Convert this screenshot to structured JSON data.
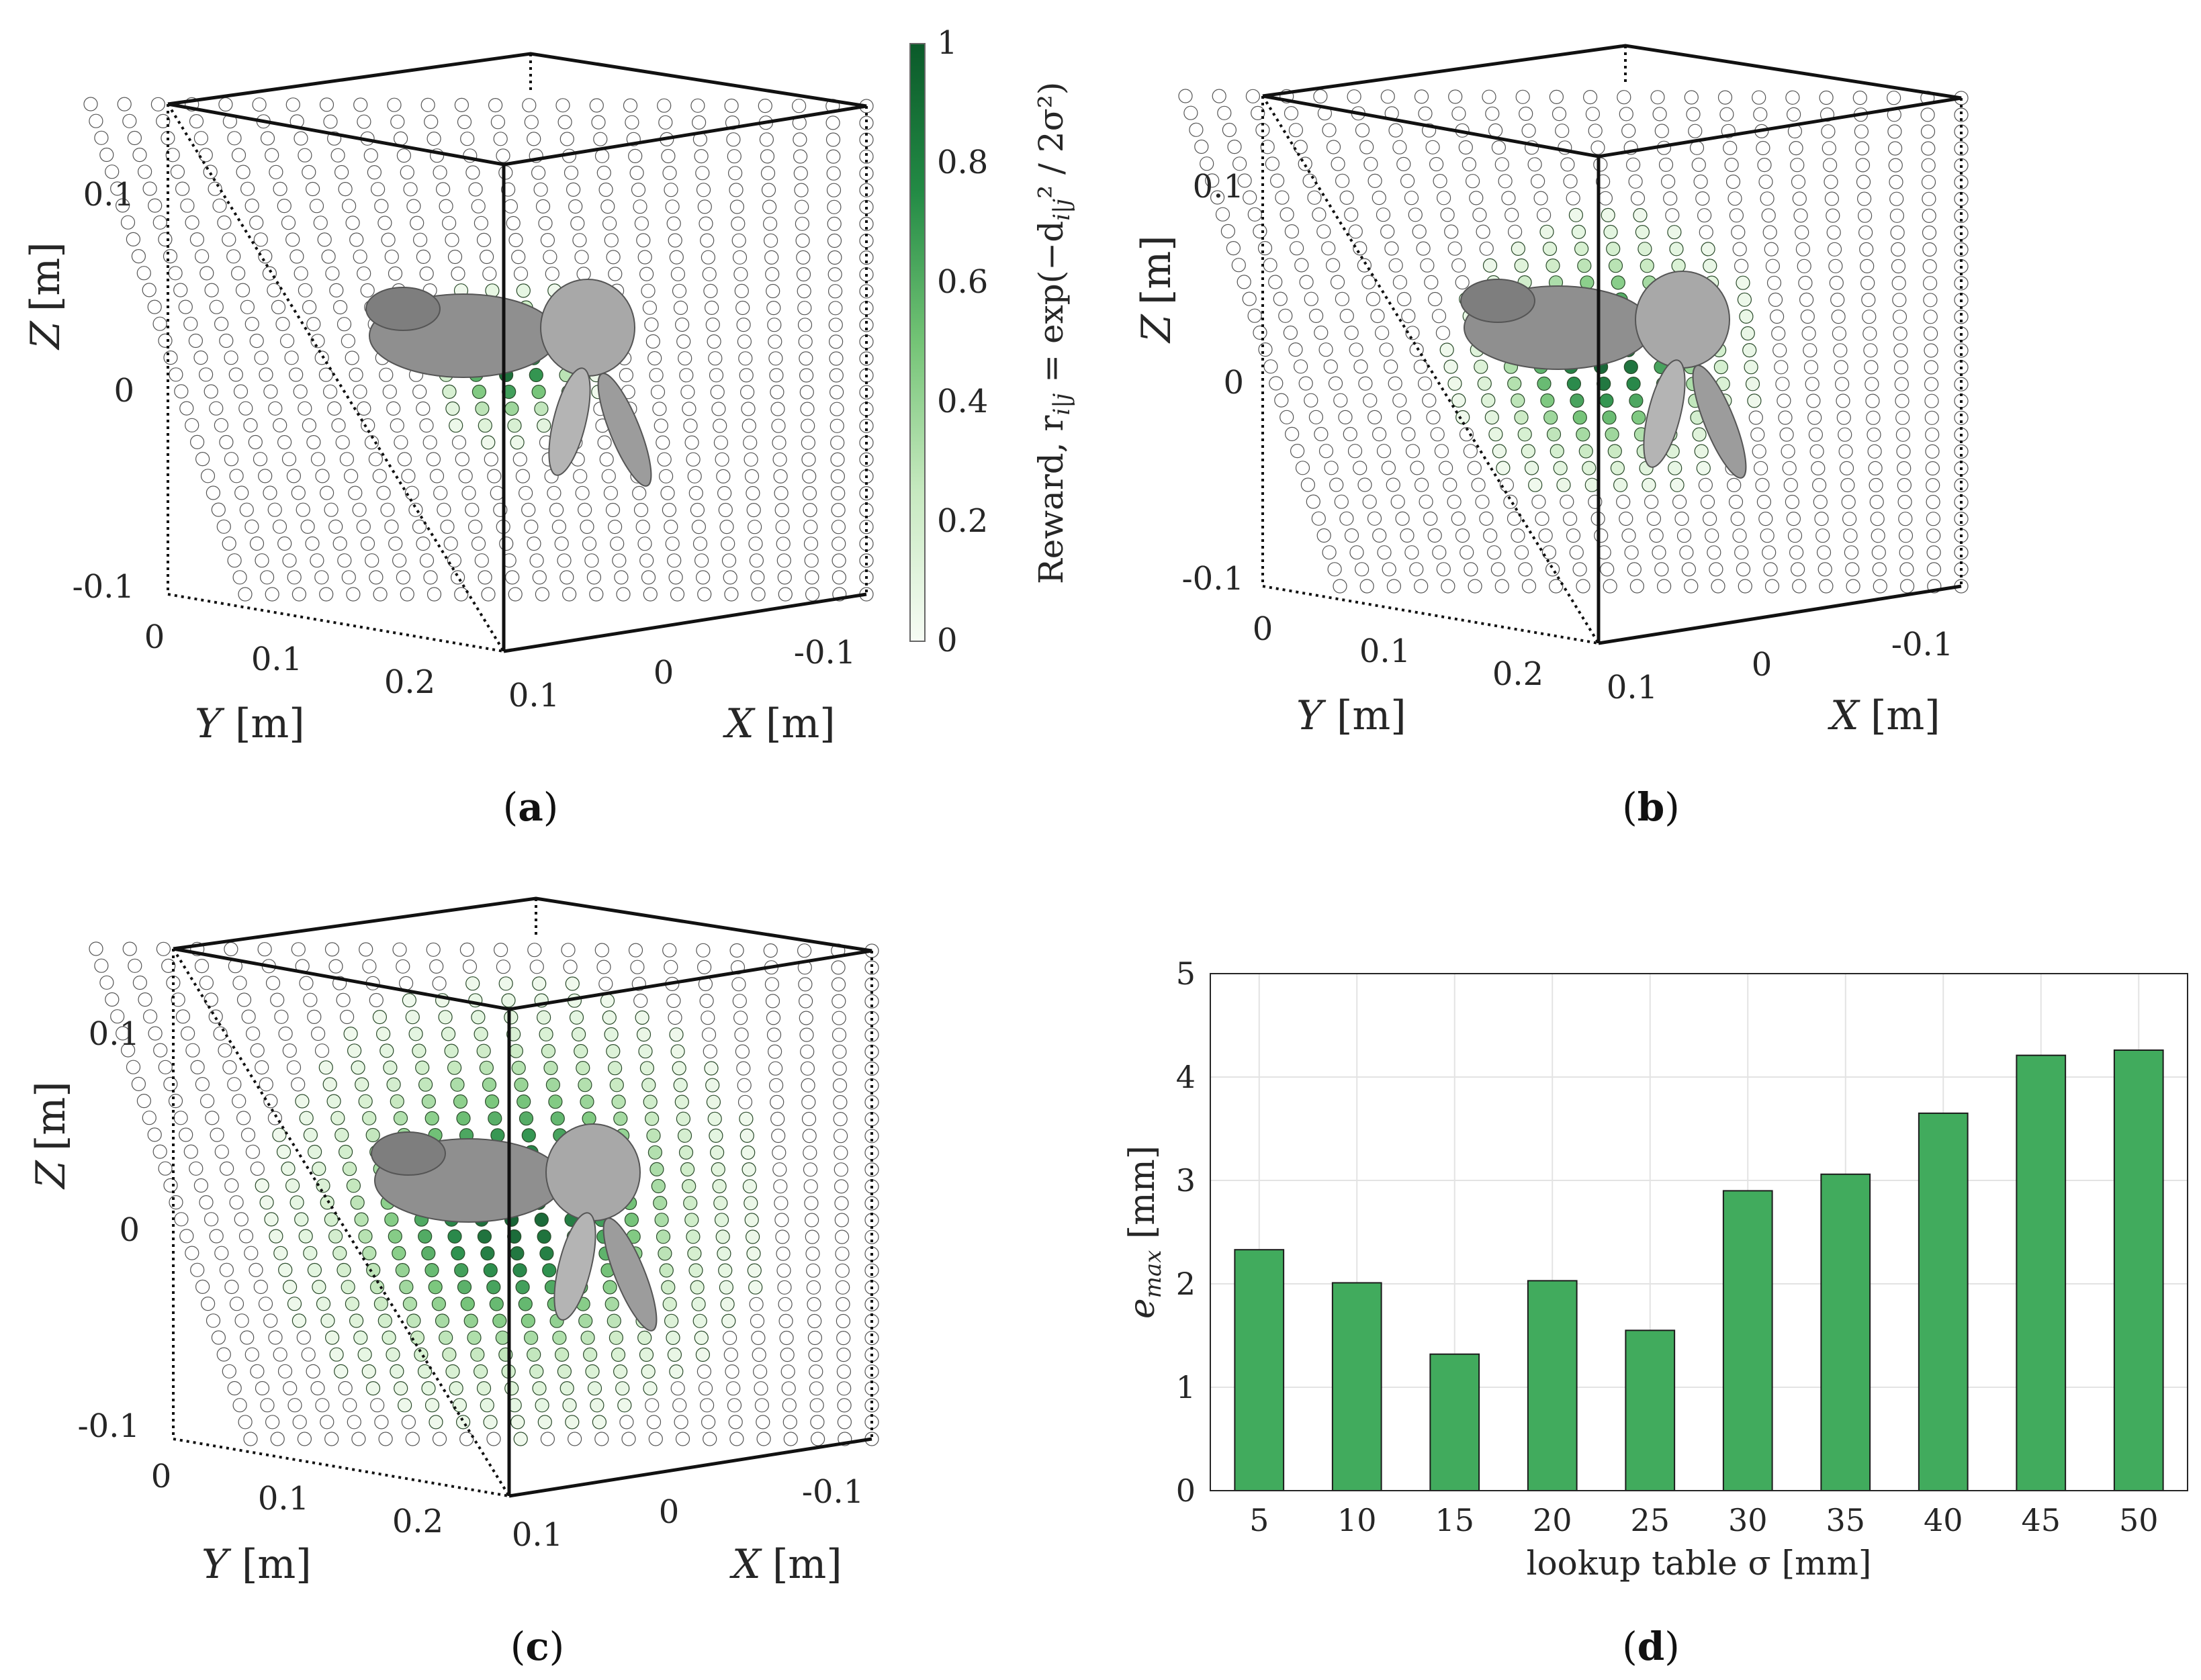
{
  "panels": [
    {
      "id": "a",
      "caption_letter": "a",
      "reward_spread": "narrow",
      "axes": {
        "z_label": "Z",
        "z_unit": "[m]",
        "z_ticks": [
          "0.1",
          "0",
          "-0.1"
        ],
        "y_label": "Y",
        "y_unit": "[m]",
        "y_ticks": [
          "0",
          "0.1",
          "0.2"
        ],
        "x_label": "X",
        "x_unit": "[m]",
        "x_ticks": [
          "0.1",
          "0",
          "-0.1"
        ]
      }
    },
    {
      "id": "b",
      "caption_letter": "b",
      "reward_spread": "medium",
      "axes": {
        "z_label": "Z",
        "z_unit": "[m]",
        "z_ticks": [
          "0.1",
          "0",
          "-0.1"
        ],
        "y_label": "Y",
        "y_unit": "[m]",
        "y_ticks": [
          "0",
          "0.1",
          "0.2"
        ],
        "x_label": "X",
        "x_unit": "[m]",
        "x_ticks": [
          "0.1",
          "0",
          "-0.1"
        ]
      }
    },
    {
      "id": "c",
      "caption_letter": "c",
      "reward_spread": "wide",
      "axes": {
        "z_label": "Z",
        "z_unit": "[m]",
        "z_ticks": [
          "0.1",
          "0",
          "-0.1"
        ],
        "y_label": "Y",
        "y_unit": "[m]",
        "y_ticks": [
          "0",
          "0.1",
          "0.2"
        ],
        "x_label": "X",
        "x_unit": "[m]",
        "x_ticks": [
          "0.1",
          "0",
          "-0.1"
        ]
      }
    }
  ],
  "colorbar": {
    "label": "Reward, r",
    "label_subscript": "i|j",
    "label_formula": " = exp(−d",
    "label_formula_sub": "i|j",
    "label_formula_tail": "² / 2σ²)",
    "ticks": [
      "1",
      "0.8",
      "0.6",
      "0.4",
      "0.2",
      "0"
    ],
    "color_high": "#0b5a2a",
    "color_low": "#f7fcf5"
  },
  "chart_data": {
    "type": "bar",
    "panel_letter": "d",
    "categories": [
      "5",
      "10",
      "15",
      "20",
      "25",
      "30",
      "35",
      "40",
      "45",
      "50"
    ],
    "values": [
      2.33,
      2.01,
      1.32,
      2.03,
      1.55,
      2.9,
      3.06,
      3.65,
      4.21,
      4.26
    ],
    "xlabel": "lookup table σ [mm]",
    "ylabel": "e",
    "ylabel_sub": "max",
    "ylabel_unit": " [mm]",
    "ylim": [
      0,
      5
    ],
    "yticks": [
      "0",
      "1",
      "2",
      "3",
      "4",
      "5"
    ],
    "grid": true,
    "bar_color": "#41ab5d"
  },
  "colors": {
    "bar": "#41ab5d",
    "bunny": "#9a9a9a",
    "frame": "#111111"
  }
}
